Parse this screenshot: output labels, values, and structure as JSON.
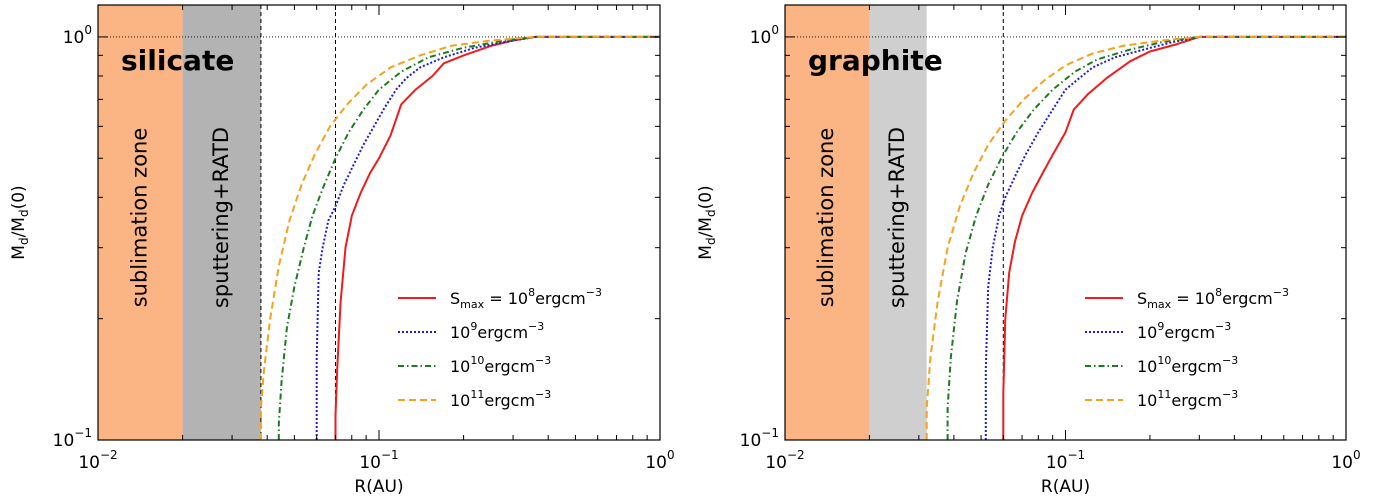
{
  "chart_data": [
    {
      "type": "line",
      "panel_label": "silicate",
      "xlabel": "R(AU)",
      "ylabel_main": "M",
      "ylabel_sub": "d",
      "ylabel_mid": "/M",
      "ylabel_sub2": "d",
      "ylabel_end": "(0)",
      "x_scale": "log",
      "y_scale": "log",
      "xlim": [
        0.01,
        1.0
      ],
      "ylim": [
        0.1,
        1.2
      ],
      "x_ticks": [
        {
          "base": "10",
          "exp": "−2"
        },
        {
          "base": "10",
          "exp": "−1"
        },
        {
          "base": "10",
          "exp": "0"
        }
      ],
      "y_ticks": [
        {
          "base": "10",
          "exp": "−1"
        },
        {
          "base": "10",
          "exp": "0"
        }
      ],
      "zones": [
        {
          "label": "sublimation zone",
          "x_range": [
            0.01,
            0.02
          ],
          "color": "#fbb484",
          "text_color": "#ffffff"
        },
        {
          "label": "sputtering+RATD",
          "x_range": [
            0.02,
            0.038
          ],
          "color": "#b3b3b3",
          "text_color": "#000000"
        }
      ],
      "vlines": [
        0.038,
        0.07
      ],
      "hline": 1.0,
      "legend": {
        "placement": "lower right",
        "entries": [
          {
            "prefix": "S",
            "sub": "max",
            "mid": " = 10",
            "sup": "8",
            "unit": "ergcm",
            "unit_sup": "−3"
          },
          {
            "prefix": "",
            "sub": "",
            "mid": "10",
            "sup": "9",
            "unit": "ergcm",
            "unit_sup": "−3"
          },
          {
            "prefix": "",
            "sub": "",
            "mid": "10",
            "sup": "10",
            "unit": "ergcm",
            "unit_sup": "−3"
          },
          {
            "prefix": "",
            "sub": "",
            "mid": "10",
            "sup": "11",
            "unit": "ergcm",
            "unit_sup": "−3"
          }
        ]
      },
      "series": [
        {
          "color": "#ee1c1c",
          "dash": "",
          "x": [
            0.07,
            0.07,
            0.071,
            0.073,
            0.076,
            0.08,
            0.086,
            0.093,
            0.1,
            0.11,
            0.12,
            0.135,
            0.155,
            0.17,
            0.2,
            0.25,
            0.3,
            0.36,
            0.5,
            0.7,
            1.0
          ],
          "y": [
            0.1,
            0.115,
            0.15,
            0.22,
            0.3,
            0.36,
            0.41,
            0.46,
            0.5,
            0.57,
            0.68,
            0.74,
            0.8,
            0.86,
            0.9,
            0.95,
            0.98,
            1.0,
            1.0,
            1.0,
            1.0
          ]
        },
        {
          "color": "#1c1cdc",
          "dash": "2,2",
          "x": [
            0.06,
            0.06,
            0.061,
            0.063,
            0.066,
            0.07,
            0.075,
            0.081,
            0.088,
            0.096,
            0.105,
            0.115,
            0.125,
            0.14,
            0.17,
            0.22,
            0.3,
            0.36,
            0.5,
            1.0
          ],
          "y": [
            0.1,
            0.16,
            0.26,
            0.3,
            0.35,
            0.38,
            0.43,
            0.48,
            0.54,
            0.6,
            0.67,
            0.74,
            0.79,
            0.84,
            0.89,
            0.94,
            0.98,
            1.0,
            1.0,
            1.0
          ]
        },
        {
          "color": "#1e7a1e",
          "dash": "6,3,1.5,3",
          "x": [
            0.044,
            0.044,
            0.045,
            0.047,
            0.05,
            0.054,
            0.058,
            0.063,
            0.07,
            0.078,
            0.088,
            0.1,
            0.12,
            0.15,
            0.2,
            0.28,
            0.36,
            0.5,
            1.0
          ],
          "y": [
            0.1,
            0.11,
            0.14,
            0.19,
            0.24,
            0.3,
            0.36,
            0.42,
            0.5,
            0.58,
            0.66,
            0.74,
            0.82,
            0.89,
            0.94,
            0.98,
            1.0,
            1.0,
            1.0
          ]
        },
        {
          "color": "#f5a21e",
          "dash": "7,4",
          "x": [
            0.038,
            0.038,
            0.039,
            0.041,
            0.044,
            0.048,
            0.053,
            0.059,
            0.067,
            0.077,
            0.09,
            0.11,
            0.14,
            0.18,
            0.25,
            0.36,
            0.5,
            1.0
          ],
          "y": [
            0.1,
            0.12,
            0.15,
            0.2,
            0.27,
            0.35,
            0.43,
            0.51,
            0.6,
            0.68,
            0.76,
            0.84,
            0.9,
            0.95,
            0.98,
            1.0,
            1.0,
            1.0
          ]
        }
      ]
    },
    {
      "type": "line",
      "panel_label": "graphite",
      "xlabel": "R(AU)",
      "ylabel_main": "M",
      "ylabel_sub": "d",
      "ylabel_mid": "/M",
      "ylabel_sub2": "d",
      "ylabel_end": "(0)",
      "x_scale": "log",
      "y_scale": "log",
      "xlim": [
        0.01,
        1.0
      ],
      "ylim": [
        0.1,
        1.2
      ],
      "x_ticks": [
        {
          "base": "10",
          "exp": "−2"
        },
        {
          "base": "10",
          "exp": "−1"
        },
        {
          "base": "10",
          "exp": "0"
        }
      ],
      "y_ticks": [
        {
          "base": "10",
          "exp": "−1"
        },
        {
          "base": "10",
          "exp": "0"
        }
      ],
      "zones": [
        {
          "label": "sublimation zone",
          "x_range": [
            0.01,
            0.02
          ],
          "color": "#fbb484",
          "text_color": "#ffffff"
        },
        {
          "label": "sputtering+RATD",
          "x_range": [
            0.02,
            0.032
          ],
          "color": "#cfcfcf",
          "text_color": "#000000"
        }
      ],
      "vlines": [
        0.06
      ],
      "hline": 1.0,
      "legend": {
        "placement": "lower right",
        "entries": [
          {
            "prefix": "S",
            "sub": "max",
            "mid": " = 10",
            "sup": "8",
            "unit": "ergcm",
            "unit_sup": "−3"
          },
          {
            "prefix": "",
            "sub": "",
            "mid": "10",
            "sup": "9",
            "unit": "ergcm",
            "unit_sup": "−3"
          },
          {
            "prefix": "",
            "sub": "",
            "mid": "10",
            "sup": "10",
            "unit": "ergcm",
            "unit_sup": "−3"
          },
          {
            "prefix": "",
            "sub": "",
            "mid": "10",
            "sup": "11",
            "unit": "ergcm",
            "unit_sup": "−3"
          }
        ]
      },
      "series": [
        {
          "color": "#ee1c1c",
          "dash": "",
          "x": [
            0.06,
            0.06,
            0.061,
            0.063,
            0.066,
            0.07,
            0.076,
            0.083,
            0.09,
            0.1,
            0.107,
            0.12,
            0.14,
            0.17,
            0.2,
            0.25,
            0.3,
            0.5,
            1.0
          ],
          "y": [
            0.1,
            0.13,
            0.2,
            0.26,
            0.31,
            0.36,
            0.41,
            0.46,
            0.51,
            0.58,
            0.66,
            0.72,
            0.79,
            0.87,
            0.92,
            0.96,
            1.0,
            1.0,
            1.0
          ]
        },
        {
          "color": "#1c1cdc",
          "dash": "2,2",
          "x": [
            0.052,
            0.052,
            0.053,
            0.055,
            0.058,
            0.061,
            0.066,
            0.072,
            0.08,
            0.09,
            0.1,
            0.112,
            0.125,
            0.15,
            0.19,
            0.24,
            0.3,
            0.5,
            1.0
          ],
          "y": [
            0.1,
            0.15,
            0.24,
            0.3,
            0.36,
            0.4,
            0.45,
            0.51,
            0.58,
            0.66,
            0.74,
            0.79,
            0.84,
            0.89,
            0.93,
            0.97,
            1.0,
            1.0,
            1.0
          ]
        },
        {
          "color": "#1e7a1e",
          "dash": "6,3,1.5,3",
          "x": [
            0.038,
            0.038,
            0.039,
            0.041,
            0.044,
            0.048,
            0.053,
            0.059,
            0.067,
            0.077,
            0.09,
            0.108,
            0.13,
            0.17,
            0.22,
            0.3,
            0.5,
            1.0
          ],
          "y": [
            0.1,
            0.12,
            0.16,
            0.22,
            0.29,
            0.36,
            0.43,
            0.5,
            0.58,
            0.66,
            0.74,
            0.82,
            0.88,
            0.93,
            0.97,
            1.0,
            1.0,
            1.0
          ]
        },
        {
          "color": "#f5a21e",
          "dash": "7,4",
          "x": [
            0.032,
            0.032,
            0.033,
            0.035,
            0.038,
            0.042,
            0.047,
            0.053,
            0.061,
            0.071,
            0.084,
            0.1,
            0.125,
            0.16,
            0.22,
            0.3,
            0.5,
            1.0
          ],
          "y": [
            0.1,
            0.12,
            0.16,
            0.22,
            0.3,
            0.38,
            0.46,
            0.54,
            0.62,
            0.7,
            0.78,
            0.85,
            0.91,
            0.95,
            0.98,
            1.0,
            1.0,
            1.0
          ]
        }
      ]
    }
  ]
}
